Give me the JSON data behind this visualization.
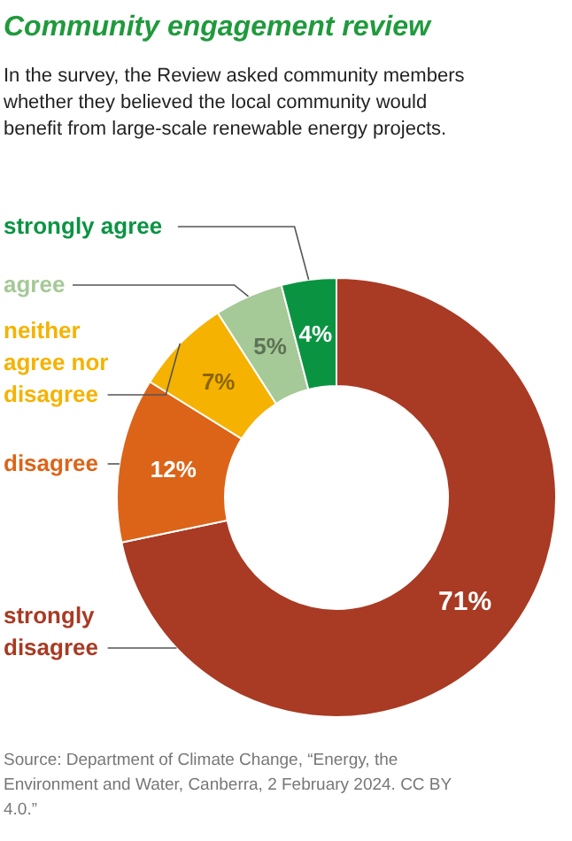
{
  "chart_data": {
    "type": "donut",
    "title": "Community engagement review",
    "subtitle": "In the survey, the Review asked community members whether they believed the local community would benefit from large-scale renewable energy projects.",
    "categories": [
      "strongly disagree",
      "disagree",
      "neither agree nor disagree",
      "agree",
      "strongly agree"
    ],
    "values": [
      71,
      12,
      7,
      5,
      4
    ],
    "colors": [
      "#a93a23",
      "#dc6418",
      "#f5b200",
      "#a5c997",
      "#0a9442"
    ],
    "value_labels": [
      "71%",
      "12%",
      "7%",
      "5%",
      "4%"
    ],
    "annotations": [
      "Source: Department of Climate Change, “Energy, the Environment and Water, Canberra, 2 February 2024. CC BY 4.0.”"
    ]
  }
}
